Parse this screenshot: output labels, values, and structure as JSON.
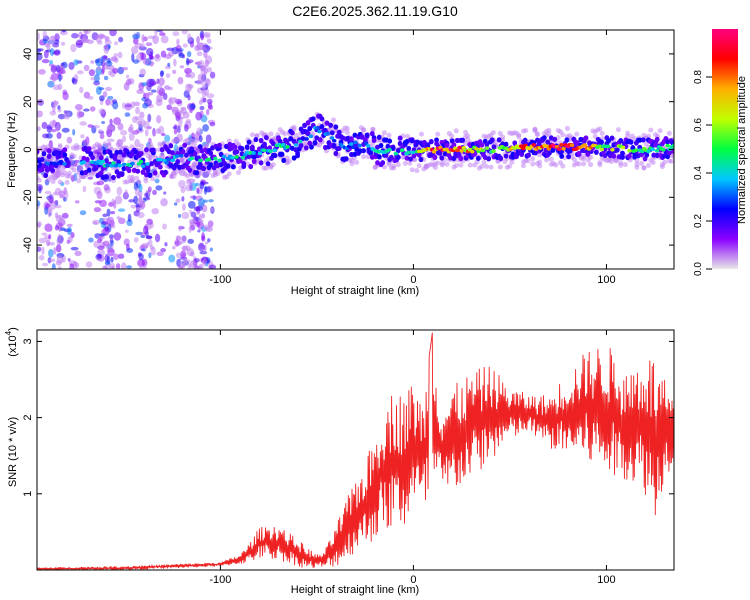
{
  "page_title": "C2E6.2025.362.11.19.G10",
  "chart_data": [
    {
      "type": "heatmap",
      "name": "spectrogram",
      "xlabel": "Height of straight line (km)",
      "ylabel": "Frequency (Hz)",
      "xlim": [
        -195,
        135
      ],
      "ylim": [
        -50,
        50
      ],
      "x_ticks": [
        -100,
        0,
        100
      ],
      "x_tick_labels": [
        "-100",
        "0",
        "100"
      ],
      "y_ticks": [
        -40,
        -20,
        0,
        20,
        40
      ],
      "y_tick_labels": [
        "-40",
        "-20",
        "0",
        "20",
        "40"
      ],
      "ridge": {
        "x": [
          -195,
          -180,
          -170,
          -160,
          -150,
          -140,
          -130,
          -120,
          -110,
          -100,
          -90,
          -80,
          -70,
          -60,
          -55,
          -50,
          -45,
          -40,
          -35,
          -30,
          -25,
          -20,
          -10,
          0,
          10,
          20,
          40,
          60,
          80,
          100,
          120,
          135
        ],
        "frequency": [
          -5,
          -6,
          -5,
          -6,
          -6,
          -6,
          -5,
          -3,
          -4,
          -4,
          -3,
          -1,
          1,
          2,
          5,
          9,
          6,
          4,
          1,
          2,
          3,
          0,
          -1,
          -1,
          0,
          0,
          0,
          1,
          1,
          1,
          0,
          1
        ],
        "amplitude": [
          0.3,
          0.3,
          0.35,
          0.4,
          0.4,
          0.45,
          0.4,
          0.4,
          0.45,
          0.45,
          0.45,
          0.45,
          0.45,
          0.4,
          0.35,
          0.35,
          0.3,
          0.3,
          0.3,
          0.35,
          0.35,
          0.4,
          0.4,
          0.5,
          0.9,
          0.9,
          0.5,
          0.85,
          0.9,
          0.6,
          0.5,
          0.5
        ]
      },
      "noise_region_x": [
        -195,
        -105
      ]
    },
    {
      "type": "colorbar",
      "name": "amplitude-colorbar",
      "label": "Normalized spectral amplitude",
      "range": [
        0,
        1
      ],
      "ticks": [
        0.0,
        0.2,
        0.4,
        0.6,
        0.8
      ],
      "tick_labels": [
        "0.0",
        "0.2",
        "0.4",
        "0.6",
        "0.8"
      ],
      "colors": [
        "#e8e8e8",
        "#8a00ff",
        "#0000ff",
        "#00c8ff",
        "#00ff40",
        "#c0ff00",
        "#ffb000",
        "#ff0000",
        "#ff0080"
      ]
    },
    {
      "type": "line",
      "name": "snr-line",
      "xlabel": "Height of straight line (km)",
      "ylabel": "SNR (10 * v/v)",
      "scale_label_base": "(x10",
      "scale_label_exp": "4",
      "scale_label_close": ")",
      "xlim": [
        -195,
        135
      ],
      "ylim": [
        0,
        3.15
      ],
      "x_ticks": [
        -100,
        0,
        100
      ],
      "x_tick_labels": [
        "-100",
        "0",
        "100"
      ],
      "y_ticks": [
        1,
        2,
        3
      ],
      "y_tick_labels": [
        "1",
        "2",
        "3"
      ],
      "color": "#ee2222",
      "envelope": {
        "x": [
          -195,
          -150,
          -130,
          -100,
          -90,
          -85,
          -80,
          -75,
          -70,
          -65,
          -60,
          -55,
          -50,
          -45,
          -40,
          -35,
          -30,
          -25,
          -20,
          -15,
          -10,
          -5,
          0,
          5,
          10,
          15,
          20,
          30,
          40,
          50,
          60,
          70,
          80,
          90,
          100,
          110,
          120,
          125,
          130,
          135
        ],
        "low": [
          0.0,
          0.0,
          0.02,
          0.05,
          0.08,
          0.1,
          0.15,
          0.15,
          0.12,
          0.1,
          0.05,
          0.02,
          0.02,
          0.02,
          0.05,
          0.1,
          0.25,
          0.3,
          0.4,
          0.5,
          0.5,
          0.5,
          0.8,
          0.7,
          0.9,
          0.9,
          1.0,
          1.2,
          1.4,
          1.7,
          1.8,
          1.6,
          1.5,
          1.4,
          1.2,
          1.2,
          1.0,
          0.6,
          1.2,
          1.4
        ],
        "high": [
          0.03,
          0.05,
          0.07,
          0.1,
          0.2,
          0.35,
          0.55,
          0.6,
          0.6,
          0.5,
          0.4,
          0.3,
          0.2,
          0.3,
          0.6,
          0.9,
          1.2,
          1.4,
          1.8,
          2.2,
          2.4,
          2.3,
          2.5,
          2.2,
          3.15,
          2.2,
          2.4,
          2.6,
          2.7,
          2.4,
          2.3,
          2.3,
          2.6,
          2.9,
          3.0,
          2.6,
          2.9,
          2.8,
          2.5,
          2.2
        ]
      }
    }
  ]
}
